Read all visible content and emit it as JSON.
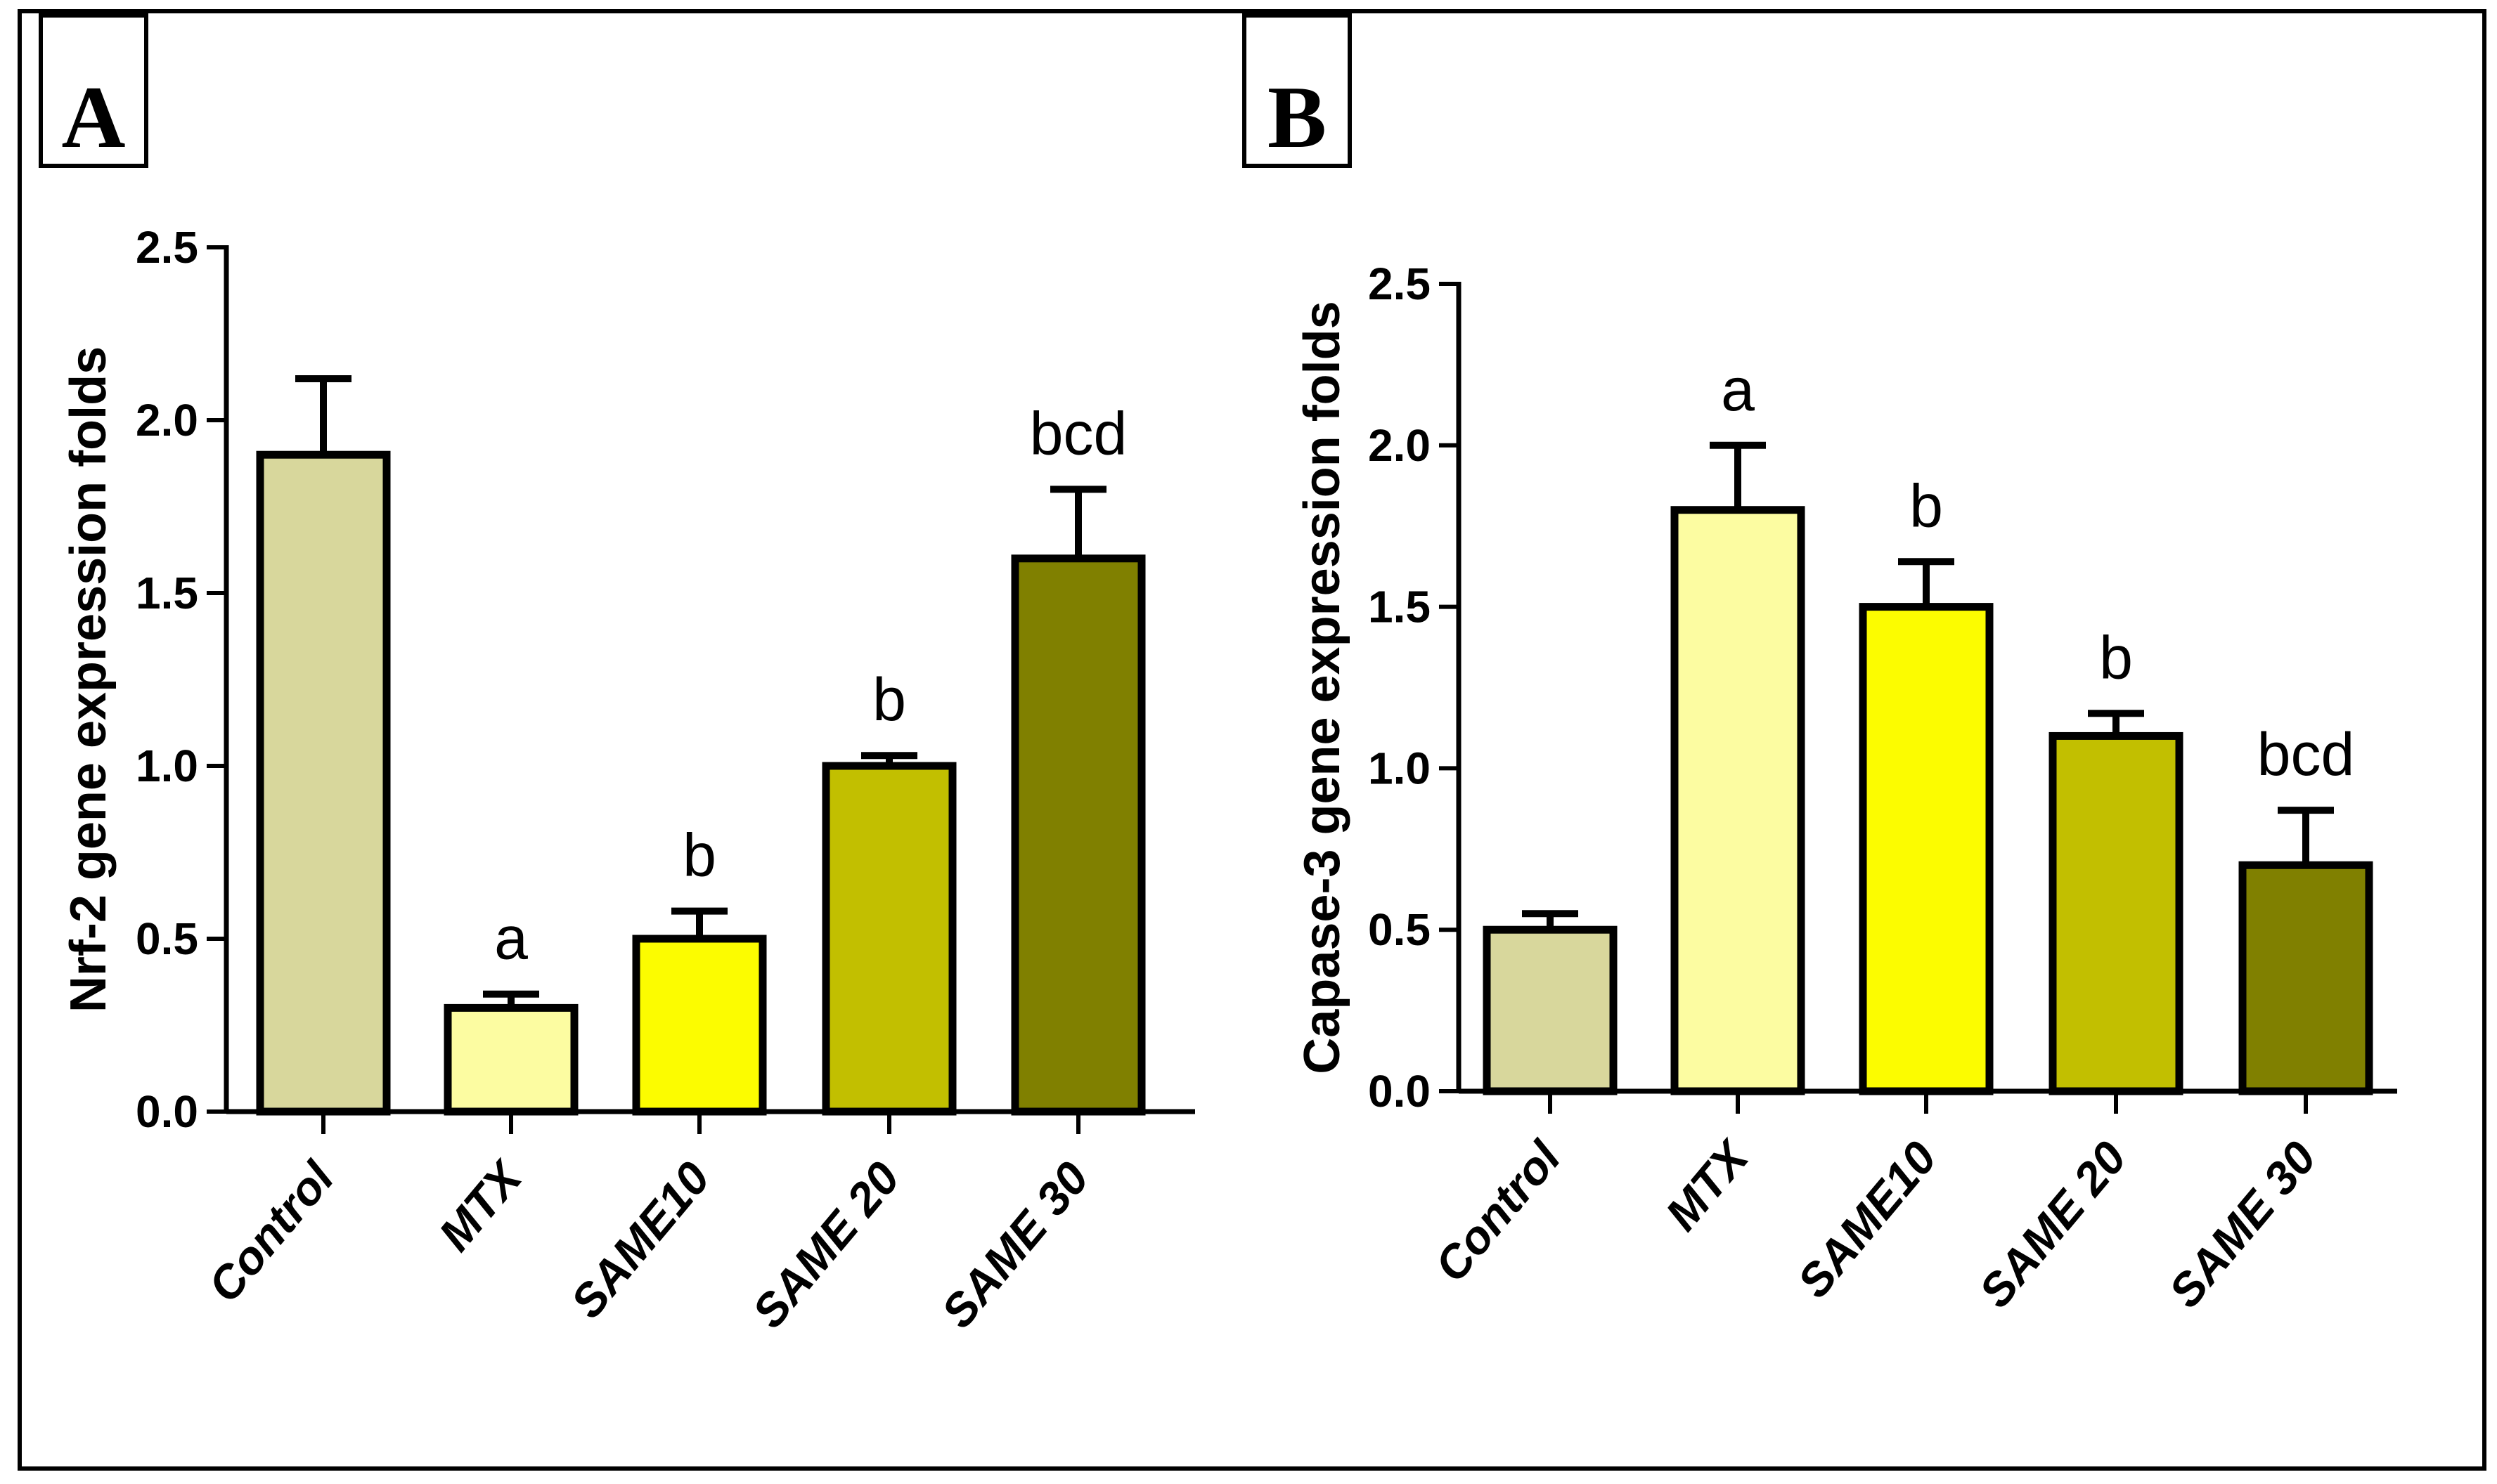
{
  "chart_data": [
    {
      "type": "bar",
      "panel": "A",
      "title": "",
      "xlabel": "",
      "ylabel": "Nrf-2 gene expression folds",
      "ylim": [
        0,
        2.5
      ],
      "ytick_labels": [
        "0.0",
        "0.5",
        "1.0",
        "1.5",
        "2.0",
        "2.5"
      ],
      "categories": [
        "Control",
        "MTX",
        "SAME10",
        "SAME 20",
        "SAME 30"
      ],
      "values": [
        1.9,
        0.3,
        0.5,
        1.0,
        1.6
      ],
      "errors": [
        0.22,
        0.04,
        0.08,
        0.03,
        0.2
      ],
      "annotations": [
        "",
        "a",
        "b",
        "b",
        "bcd"
      ],
      "colors": [
        "#d8d79c",
        "#fcfca1",
        "#fcfc00",
        "#c2bf00",
        "#808000"
      ],
      "grid": false
    },
    {
      "type": "bar",
      "panel": "B",
      "title": "",
      "xlabel": "",
      "ylabel": "Capase-3 gene expression folds",
      "ylim": [
        0,
        2.5
      ],
      "ytick_labels": [
        "0.0",
        "0.5",
        "1.0",
        "1.5",
        "2.0",
        "2.5"
      ],
      "categories": [
        "Control",
        "MTX",
        "SAME10",
        "SAME 20",
        "SAME 30"
      ],
      "values": [
        0.5,
        1.8,
        1.5,
        1.1,
        0.7
      ],
      "errors": [
        0.05,
        0.2,
        0.14,
        0.07,
        0.17
      ],
      "annotations": [
        "",
        "a",
        "b",
        "b",
        "bcd"
      ],
      "colors": [
        "#d8d79c",
        "#fcfca1",
        "#fcfc00",
        "#c2bf00",
        "#808000"
      ],
      "grid": false
    }
  ]
}
